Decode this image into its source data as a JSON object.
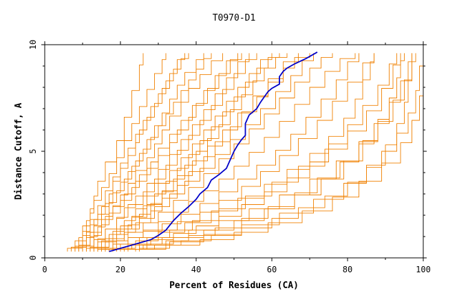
{
  "chart_data": {
    "type": "line",
    "title": "T0970-D1",
    "xlabel": "Percent of Residues (CA)",
    "ylabel": "Distance Cutoff, A",
    "xlim": [
      0,
      100
    ],
    "ylim": [
      0,
      10
    ],
    "x_ticks": [
      "0",
      "20",
      "40",
      "60",
      "80",
      "100"
    ],
    "y_ticks": [
      "0",
      "5",
      "10"
    ],
    "grid": false,
    "legend": "none",
    "colors": {
      "models": "#f08000",
      "highlight": "#0000c8",
      "axis": "#000000",
      "background": "#ffffff"
    },
    "highlight_series": {
      "x": [
        17,
        20,
        24,
        28,
        30,
        32,
        34,
        36,
        38,
        40,
        41,
        43,
        44,
        46,
        48,
        49,
        50,
        51,
        52,
        53,
        53,
        54,
        56,
        57,
        58,
        59,
        60,
        62,
        62,
        63,
        64,
        66,
        69,
        72
      ],
      "y": [
        0.3,
        0.45,
        0.65,
        0.85,
        1.05,
        1.3,
        1.75,
        2.1,
        2.4,
        2.75,
        3.0,
        3.3,
        3.65,
        3.9,
        4.2,
        4.6,
        5.0,
        5.3,
        5.55,
        5.75,
        6.3,
        6.7,
        7.0,
        7.3,
        7.55,
        7.8,
        7.95,
        8.15,
        8.5,
        8.75,
        8.9,
        9.1,
        9.35,
        9.65
      ]
    },
    "background_series": [
      {
        "x": [
          6,
          8,
          10,
          11,
          12,
          13,
          14,
          16,
          19,
          21,
          23,
          25,
          26
        ],
        "y": [
          0.3,
          0.6,
          1.0,
          1.5,
          2.0,
          2.6,
          3.2,
          4.0,
          5.0,
          6.0,
          7.2,
          8.5,
          9.6
        ]
      },
      {
        "x": [
          7,
          9,
          10,
          12,
          13,
          15,
          17,
          19,
          21,
          23,
          25,
          27,
          29,
          31,
          32
        ],
        "y": [
          0.3,
          0.7,
          1.2,
          1.8,
          2.4,
          3.0,
          3.6,
          4.3,
          5.1,
          5.9,
          6.7,
          7.5,
          8.3,
          9.0,
          9.6
        ]
      },
      {
        "x": [
          8,
          10,
          11,
          12,
          14,
          16,
          18,
          20,
          22,
          24,
          26,
          28,
          30,
          32,
          34,
          36,
          38
        ],
        "y": [
          0.3,
          0.6,
          1.0,
          1.5,
          2.1,
          2.8,
          3.5,
          4.1,
          4.8,
          5.5,
          6.1,
          6.8,
          7.4,
          8.0,
          8.6,
          9.1,
          9.6
        ]
      },
      {
        "x": [
          9,
          11,
          13,
          15,
          17,
          19,
          21,
          23,
          25,
          27,
          29,
          31,
          33,
          35,
          37,
          40,
          42
        ],
        "y": [
          0.3,
          0.7,
          1.2,
          1.8,
          2.3,
          2.9,
          3.4,
          4.0,
          4.6,
          5.2,
          5.9,
          6.5,
          7.1,
          7.8,
          8.4,
          9.0,
          9.6
        ]
      },
      {
        "x": [
          10,
          12,
          14,
          16,
          18,
          20,
          22,
          24,
          27,
          29,
          31,
          33,
          36,
          38,
          41,
          44,
          47
        ],
        "y": [
          0.3,
          0.8,
          1.2,
          1.7,
          2.2,
          2.7,
          3.2,
          3.8,
          4.4,
          5.0,
          5.7,
          6.3,
          7.0,
          7.6,
          8.3,
          8.9,
          9.6
        ]
      },
      {
        "x": [
          11,
          13,
          15,
          17,
          20,
          23,
          25,
          28,
          30,
          33,
          36,
          39,
          42,
          45,
          48,
          51
        ],
        "y": [
          0.3,
          0.8,
          1.3,
          1.8,
          2.4,
          3.0,
          3.6,
          4.2,
          4.8,
          5.5,
          6.1,
          6.8,
          7.5,
          8.2,
          8.9,
          9.6
        ]
      },
      {
        "x": [
          12,
          14,
          16,
          19,
          21,
          24,
          27,
          30,
          33,
          36,
          39,
          42,
          45,
          48,
          51,
          54
        ],
        "y": [
          0.3,
          0.7,
          1.1,
          1.6,
          2.1,
          2.6,
          3.2,
          3.8,
          4.5,
          5.2,
          5.9,
          6.6,
          7.3,
          8.1,
          8.8,
          9.6
        ]
      },
      {
        "x": [
          13,
          15,
          18,
          21,
          24,
          27,
          30,
          33,
          36,
          39,
          42,
          45,
          48,
          51,
          54,
          57,
          60
        ],
        "y": [
          0.3,
          0.6,
          1.0,
          1.5,
          2.0,
          2.6,
          3.2,
          3.8,
          4.4,
          5.0,
          5.7,
          6.3,
          7.0,
          7.7,
          8.3,
          9.0,
          9.6
        ]
      },
      {
        "x": [
          14,
          16,
          19,
          22,
          25,
          28,
          31,
          34,
          37,
          40,
          43,
          46,
          49,
          52,
          55,
          58,
          61,
          64
        ],
        "y": [
          0.3,
          0.6,
          0.9,
          1.3,
          1.8,
          2.3,
          2.8,
          3.4,
          4.0,
          4.7,
          5.3,
          5.9,
          6.6,
          7.3,
          8.0,
          8.6,
          9.2,
          9.6
        ]
      },
      {
        "x": [
          15,
          18,
          21,
          24,
          28,
          31,
          35,
          38,
          42,
          45,
          49,
          52,
          56,
          59,
          63,
          66,
          70
        ],
        "y": [
          0.3,
          0.6,
          1.0,
          1.4,
          1.9,
          2.5,
          3.1,
          3.7,
          4.4,
          5.1,
          5.8,
          6.5,
          7.2,
          7.9,
          8.6,
          9.2,
          9.6
        ]
      },
      {
        "x": [
          16,
          19,
          22,
          26,
          30,
          34,
          38,
          42,
          46,
          50,
          54,
          58,
          62,
          66,
          70,
          73,
          76
        ],
        "y": [
          0.3,
          0.6,
          1.0,
          1.4,
          1.9,
          2.4,
          3.0,
          3.6,
          4.3,
          5.0,
          5.7,
          6.4,
          7.1,
          7.9,
          8.6,
          9.2,
          9.6
        ]
      },
      {
        "x": [
          9,
          12,
          15,
          18,
          21,
          24,
          27,
          30,
          33,
          35,
          38,
          40,
          43,
          46,
          49,
          52
        ],
        "y": [
          0.3,
          0.9,
          1.5,
          2.1,
          2.7,
          3.3,
          3.9,
          4.5,
          5.1,
          5.7,
          6.3,
          6.9,
          7.6,
          8.3,
          9.0,
          9.6
        ]
      },
      {
        "x": [
          11,
          13,
          16,
          19,
          22,
          26,
          29,
          32,
          35,
          38,
          41,
          44,
          47,
          50,
          53,
          56
        ],
        "y": [
          0.3,
          0.6,
          1.1,
          1.6,
          2.2,
          2.8,
          3.4,
          4.0,
          4.7,
          5.4,
          6.1,
          6.8,
          7.5,
          8.3,
          9.0,
          9.6
        ]
      },
      {
        "x": [
          13,
          16,
          19,
          23,
          27,
          31,
          35,
          39,
          43,
          47,
          51,
          55,
          59,
          63,
          67
        ],
        "y": [
          0.3,
          0.7,
          1.1,
          1.6,
          2.2,
          2.8,
          3.5,
          4.2,
          4.9,
          5.6,
          6.4,
          7.2,
          8.0,
          8.8,
          9.6
        ]
      },
      {
        "x": [
          15,
          18,
          22,
          26,
          30,
          34,
          38,
          42,
          46,
          50,
          54,
          58,
          62,
          66,
          70,
          74,
          78,
          82
        ],
        "y": [
          0.3,
          0.5,
          0.8,
          1.1,
          1.5,
          1.9,
          2.4,
          2.9,
          3.4,
          4.0,
          4.6,
          5.3,
          6.0,
          6.8,
          7.6,
          8.4,
          9.1,
          9.6
        ]
      },
      {
        "x": [
          14,
          18,
          22,
          26,
          31,
          36,
          41,
          46,
          51,
          56,
          61,
          65,
          69,
          73,
          77,
          80,
          83
        ],
        "y": [
          0.3,
          0.5,
          0.8,
          1.1,
          1.4,
          1.8,
          2.3,
          2.8,
          3.4,
          4.0,
          4.7,
          5.4,
          6.2,
          7.0,
          7.9,
          8.8,
          9.6
        ]
      },
      {
        "x": [
          16,
          20,
          25,
          30,
          35,
          41,
          46,
          52,
          57,
          62,
          67,
          72,
          76,
          80,
          84,
          87
        ],
        "y": [
          0.3,
          0.5,
          0.8,
          1.1,
          1.5,
          1.9,
          2.4,
          3.0,
          3.7,
          4.4,
          5.2,
          6.0,
          6.9,
          7.8,
          8.7,
          9.6
        ]
      },
      {
        "x": [
          18,
          23,
          28,
          34,
          40,
          46,
          52,
          58,
          64,
          70,
          75,
          80,
          84,
          88,
          91,
          93
        ],
        "y": [
          0.3,
          0.5,
          0.7,
          1.0,
          1.3,
          1.7,
          2.2,
          2.8,
          3.4,
          4.1,
          4.9,
          5.8,
          6.7,
          7.6,
          8.6,
          9.6
        ]
      },
      {
        "x": [
          20,
          26,
          32,
          38,
          45,
          52,
          59,
          66,
          72,
          78,
          83,
          87,
          91,
          94,
          96,
          97
        ],
        "y": [
          0.3,
          0.5,
          0.7,
          0.9,
          1.2,
          1.6,
          2.1,
          2.7,
          3.4,
          4.1,
          4.9,
          5.8,
          6.8,
          7.8,
          8.8,
          9.6
        ]
      },
      {
        "x": [
          22,
          29,
          36,
          44,
          52,
          60,
          67,
          74,
          80,
          85,
          89,
          93,
          96,
          98,
          99,
          100
        ],
        "y": [
          0.3,
          0.5,
          0.7,
          0.9,
          1.2,
          1.6,
          2.1,
          2.6,
          3.2,
          3.9,
          4.6,
          5.4,
          6.3,
          7.3,
          8.4,
          9.6
        ]
      },
      {
        "x": [
          24,
          32,
          41,
          50,
          59,
          68,
          76,
          83,
          89,
          94,
          97,
          99,
          100,
          100
        ],
        "y": [
          0.3,
          0.5,
          0.7,
          1.0,
          1.4,
          1.9,
          2.5,
          3.2,
          4.0,
          4.9,
          5.9,
          7.0,
          8.2,
          9.6
        ]
      },
      {
        "x": [
          19,
          25,
          31,
          38,
          46,
          54,
          62,
          70,
          77,
          83,
          88,
          92,
          95,
          97,
          98
        ],
        "y": [
          0.3,
          0.5,
          0.8,
          1.1,
          1.5,
          2.0,
          2.6,
          3.3,
          4.1,
          5.0,
          5.9,
          6.9,
          7.9,
          8.8,
          9.6
        ]
      },
      {
        "x": [
          17,
          22,
          27,
          33,
          39,
          46,
          53,
          60,
          67,
          74,
          80,
          85,
          89,
          92,
          94
        ],
        "y": [
          0.3,
          0.5,
          0.8,
          1.1,
          1.5,
          2.0,
          2.6,
          3.2,
          3.9,
          4.7,
          5.5,
          6.4,
          7.4,
          8.5,
          9.6
        ]
      },
      {
        "x": [
          12,
          14,
          17,
          20,
          23,
          26,
          29,
          32,
          35,
          38,
          41,
          44,
          47,
          50,
          53,
          56,
          59,
          62
        ],
        "y": [
          0.3,
          0.6,
          0.9,
          1.3,
          1.7,
          2.2,
          2.7,
          3.3,
          3.9,
          4.5,
          5.2,
          5.8,
          6.5,
          7.2,
          7.9,
          8.6,
          9.2,
          9.6
        ]
      },
      {
        "x": [
          8,
          10,
          12,
          14,
          16,
          18,
          20,
          22,
          24,
          26,
          28,
          30,
          32,
          34,
          36,
          38,
          40,
          42,
          44
        ],
        "y": [
          0.3,
          0.8,
          1.3,
          1.8,
          2.3,
          2.8,
          3.3,
          3.8,
          4.3,
          4.8,
          5.4,
          5.9,
          6.5,
          7.0,
          7.6,
          8.1,
          8.6,
          9.1,
          9.6
        ]
      },
      {
        "x": [
          10,
          11,
          13,
          15,
          17,
          18,
          20,
          22,
          24,
          25,
          27,
          29,
          31,
          33,
          35,
          37
        ],
        "y": [
          0.3,
          0.9,
          1.5,
          2.1,
          2.7,
          3.3,
          3.9,
          4.5,
          5.1,
          5.7,
          6.3,
          6.9,
          7.6,
          8.3,
          9.0,
          9.6
        ]
      },
      {
        "x": [
          25,
          33,
          42,
          52,
          62,
          71,
          79,
          85,
          90,
          93,
          95,
          96,
          97,
          97
        ],
        "y": [
          0.3,
          0.6,
          0.9,
          1.3,
          1.8,
          2.4,
          3.1,
          3.9,
          4.8,
          5.8,
          6.8,
          7.8,
          8.8,
          9.6
        ]
      },
      {
        "x": [
          18,
          24,
          30,
          37,
          44,
          51,
          58,
          64,
          70,
          75,
          79,
          82,
          84,
          86,
          87
        ],
        "y": [
          0.3,
          0.6,
          1.0,
          1.4,
          1.9,
          2.5,
          3.1,
          3.8,
          4.5,
          5.3,
          6.1,
          7.0,
          7.9,
          8.8,
          9.6
        ]
      },
      {
        "x": [
          14,
          17,
          21,
          25,
          29,
          33,
          37,
          41,
          45,
          49,
          53,
          57,
          61,
          65,
          68,
          71
        ],
        "y": [
          0.3,
          0.7,
          1.1,
          1.6,
          2.1,
          2.7,
          3.3,
          3.9,
          4.5,
          5.2,
          5.9,
          6.6,
          7.4,
          8.2,
          8.9,
          9.6
        ]
      },
      {
        "x": [
          21,
          27,
          34,
          42,
          50,
          58,
          66,
          73,
          79,
          84,
          88,
          91,
          93,
          94,
          95
        ],
        "y": [
          0.3,
          0.5,
          0.8,
          1.1,
          1.5,
          2.0,
          2.6,
          3.3,
          4.1,
          5.0,
          6.0,
          7.0,
          8.0,
          8.9,
          9.6
        ]
      }
    ]
  }
}
